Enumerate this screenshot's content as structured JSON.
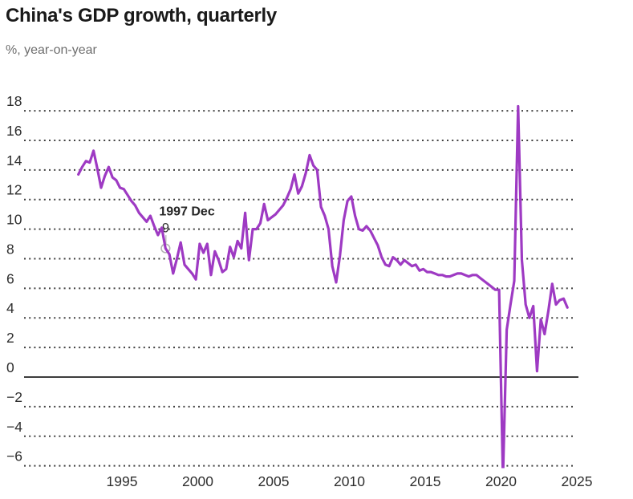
{
  "header": {
    "title": "China's GDP growth, quarterly",
    "subtitle": "%, year-on-year"
  },
  "chart_data": {
    "type": "line",
    "title": "China's GDP growth, quarterly",
    "unit_label": "%, year-on-year",
    "grid": "dotted-horizontal",
    "legend": "none",
    "line_color": "#9e3ac3",
    "axis_label_color": "#2e2e2e",
    "gridline_color": "#262626",
    "zero_line_color": "#3d3d3d",
    "annotation_color": "#b3b3b3",
    "x_ticks": [
      1995,
      2000,
      2005,
      2010,
      2015,
      2020,
      2025
    ],
    "y_ticks": [
      18,
      16,
      14,
      12,
      10,
      8,
      6,
      4,
      2,
      0,
      -2,
      -4,
      -6
    ],
    "ylim_display": [
      -6.2,
      19.5
    ],
    "xlim_display": [
      1991.5,
      2025.2
    ],
    "series": [
      {
        "name": "China GDP growth, % year-on-year",
        "frequency": "quarterly",
        "start_year": 1992,
        "start_quarter": 1,
        "end_year": 2024,
        "end_quarter": 2,
        "values": [
          13.7,
          14.2,
          14.6,
          14.5,
          15.3,
          14.1,
          12.8,
          13.6,
          14.2,
          13.5,
          13.3,
          12.8,
          12.7,
          12.3,
          11.9,
          11.6,
          11.1,
          10.8,
          10.5,
          10.9,
          10.2,
          9.6,
          10.1,
          8.7,
          8.3,
          7.0,
          8.0,
          9.1,
          7.6,
          7.3,
          7.0,
          6.6,
          9.0,
          8.4,
          9.0,
          6.9,
          8.5,
          7.9,
          7.1,
          7.3,
          8.8,
          8.1,
          9.2,
          8.7,
          11.1,
          7.9,
          10.0,
          10.0,
          10.4,
          11.7,
          10.6,
          10.8,
          11.0,
          11.3,
          11.6,
          12.1,
          12.7,
          13.7,
          12.4,
          12.9,
          13.8,
          15.0,
          14.3,
          14.0,
          11.5,
          10.9,
          10.0,
          7.5,
          6.4,
          8.2,
          10.6,
          11.9,
          12.2,
          10.9,
          10.0,
          9.9,
          10.2,
          9.9,
          9.4,
          8.9,
          8.1,
          7.6,
          7.5,
          8.1,
          7.9,
          7.6,
          7.9,
          7.7,
          7.5,
          7.6,
          7.2,
          7.3,
          7.1,
          7.1,
          7.0,
          6.9,
          6.9,
          6.8,
          6.8,
          6.9,
          7.0,
          7.0,
          6.9,
          6.8,
          6.9,
          6.9,
          6.7,
          6.5,
          6.3,
          6.1,
          5.9,
          5.9,
          -6.8,
          3.2,
          4.9,
          6.5,
          18.3,
          7.9,
          4.9,
          4.0,
          4.8,
          0.4,
          3.9,
          2.9,
          4.5,
          6.3,
          4.9,
          5.2,
          5.3,
          4.7
        ]
      }
    ],
    "annotation": {
      "label": "1997 Dec",
      "value_label": "9",
      "year": 1997,
      "quarter": 4,
      "value": 8.7
    }
  }
}
